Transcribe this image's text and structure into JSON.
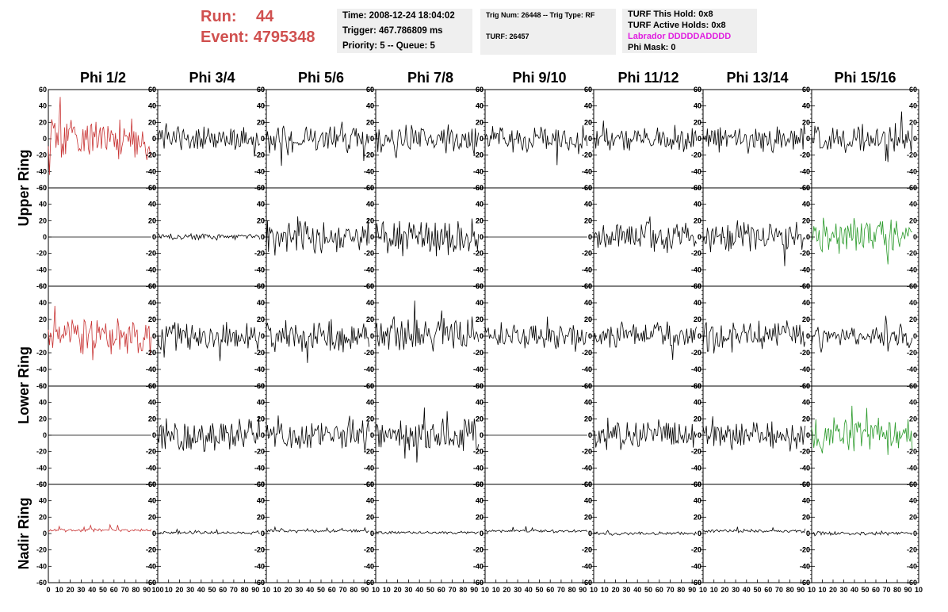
{
  "header": {
    "run_label": "Run:",
    "run_value": "44",
    "event_label": "Event:",
    "event_value": "4795348",
    "time_line": "Time: 2008-12-24 18:04:02",
    "trigger_line": "Trigger: 467.786809 ms",
    "priority_line": "Priority: 5 -- Queue: 5",
    "trig_line": "Trig Num: 26448 -- Trig Type: RF",
    "turf_line": "TURF: 26457",
    "turf_hold_line": "TURF This Hold: 0x8",
    "turf_active_line": "TURF Active Holds: 0x8",
    "labrador_line": "Labrador DDDDDADDDD",
    "phimask_line": "Phi Mask: 0"
  },
  "colors": {
    "red_trace": "#c83232",
    "green_trace": "#2a9a2a",
    "black_trace": "#000000",
    "run_text": "#d0504f",
    "labrador_text": "#e020e0"
  },
  "chart_data": {
    "type": "line",
    "columns": [
      "Phi 1/2",
      "Phi 3/4",
      "Phi 5/6",
      "Phi 7/8",
      "Phi 9/10",
      "Phi 11/12",
      "Phi 13/14",
      "Phi 15/16"
    ],
    "ring_labels": [
      "Upper Ring",
      "Lower Ring",
      "Nadir Ring"
    ],
    "rows": 5,
    "ylim": [
      -60,
      60
    ],
    "xlim": [
      0,
      100
    ],
    "y_ticks": [
      -60,
      -40,
      -20,
      0,
      20,
      40,
      60
    ],
    "x_ticks": [
      0,
      10,
      20,
      30,
      40,
      50,
      60,
      70,
      80,
      90,
      100
    ],
    "x_tick_labels_first": [
      "0",
      "10",
      "20",
      "30",
      "40",
      "50",
      "60",
      "70",
      "80",
      "90",
      "100"
    ],
    "x_tick_labels": [
      "10",
      "20",
      "30",
      "40",
      "50",
      "60",
      "70",
      "80",
      "90",
      "10"
    ],
    "trace_points": 96,
    "panels": [
      [
        {
          "color": "red",
          "amplitude": 19,
          "seed": 11
        },
        {
          "color": "black",
          "amplitude": 12,
          "seed": 12
        },
        {
          "color": "black",
          "amplitude": 15,
          "seed": 13
        },
        {
          "color": "black",
          "amplitude": 14,
          "seed": 14
        },
        {
          "color": "black",
          "amplitude": 13,
          "seed": 15
        },
        {
          "color": "black",
          "amplitude": 12,
          "seed": 16
        },
        {
          "color": "black",
          "amplitude": 14,
          "seed": 17
        },
        {
          "color": "black",
          "amplitude": 14,
          "seed": 18
        }
      ],
      [
        {
          "color": "black",
          "amplitude": 0,
          "seed": 21
        },
        {
          "color": "black",
          "amplitude": 3,
          "seed": 22
        },
        {
          "color": "black",
          "amplitude": 17,
          "seed": 23
        },
        {
          "color": "black",
          "amplitude": 18,
          "seed": 24
        },
        {
          "color": "black",
          "amplitude": 0,
          "seed": 25
        },
        {
          "color": "black",
          "amplitude": 14,
          "seed": 26
        },
        {
          "color": "black",
          "amplitude": 15,
          "seed": 27
        },
        {
          "color": "green",
          "amplitude": 18,
          "seed": 28
        }
      ],
      [
        {
          "color": "red",
          "amplitude": 20,
          "seed": 31
        },
        {
          "color": "black",
          "amplitude": 13,
          "seed": 32
        },
        {
          "color": "black",
          "amplitude": 15,
          "seed": 33
        },
        {
          "color": "black",
          "amplitude": 16,
          "seed": 34
        },
        {
          "color": "black",
          "amplitude": 12,
          "seed": 35
        },
        {
          "color": "black",
          "amplitude": 12,
          "seed": 36
        },
        {
          "color": "black",
          "amplitude": 14,
          "seed": 37
        },
        {
          "color": "black",
          "amplitude": 11,
          "seed": 38
        }
      ],
      [
        {
          "color": "black",
          "amplitude": 0,
          "seed": 41
        },
        {
          "color": "black",
          "amplitude": 16,
          "seed": 42
        },
        {
          "color": "black",
          "amplitude": 14,
          "seed": 43
        },
        {
          "color": "black",
          "amplitude": 15,
          "seed": 44
        },
        {
          "color": "black",
          "amplitude": 0,
          "seed": 45
        },
        {
          "color": "black",
          "amplitude": 14,
          "seed": 46
        },
        {
          "color": "black",
          "amplitude": 14,
          "seed": 47
        },
        {
          "color": "green",
          "amplitude": 16,
          "seed": 48
        }
      ],
      [
        {
          "color": "red",
          "amplitude": 1.5,
          "seed": 51,
          "offset": 4
        },
        {
          "color": "black",
          "amplitude": 1.5,
          "seed": 52,
          "offset": 1
        },
        {
          "color": "black",
          "amplitude": 1.5,
          "seed": 53,
          "offset": 3
        },
        {
          "color": "black",
          "amplitude": 1.5,
          "seed": 54,
          "offset": 1
        },
        {
          "color": "black",
          "amplitude": 1.5,
          "seed": 55,
          "offset": 3
        },
        {
          "color": "black",
          "amplitude": 1.5,
          "seed": 56,
          "offset": 0
        },
        {
          "color": "black",
          "amplitude": 1.5,
          "seed": 57,
          "offset": 3
        },
        {
          "color": "black",
          "amplitude": 1.5,
          "seed": 58,
          "offset": 0
        }
      ]
    ]
  }
}
